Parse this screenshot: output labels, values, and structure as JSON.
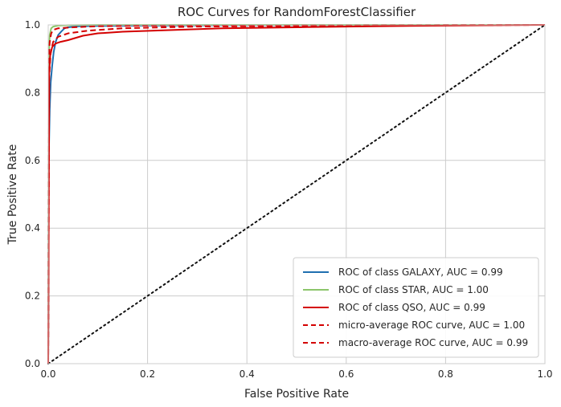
{
  "chart_data": {
    "type": "line",
    "title": "ROC Curves for RandomForestClassifier",
    "xlabel": "False Positive Rate",
    "ylabel": "True Positive Rate",
    "xlim": [
      0,
      1
    ],
    "ylim": [
      0,
      1
    ],
    "x_ticks": [
      "0.0",
      "0.2",
      "0.4",
      "0.6",
      "0.8",
      "1.0"
    ],
    "y_ticks": [
      "0.0",
      "0.2",
      "0.4",
      "0.6",
      "0.8",
      "1.0"
    ],
    "grid": true,
    "legend_position": "lower-right",
    "series": [
      {
        "name": "ROC of class GALAXY, AUC = 0.99",
        "color": "#1f6fb0",
        "dash": "solid",
        "x": [
          0,
          0.001,
          0.003,
          0.005,
          0.008,
          0.011,
          0.015,
          0.02,
          0.026,
          0.033,
          0.04,
          0.06,
          0.1,
          0.2,
          0.4,
          0.7,
          1.0
        ],
        "y": [
          0,
          0.6,
          0.75,
          0.83,
          0.88,
          0.92,
          0.95,
          0.97,
          0.98,
          0.99,
          0.993,
          0.996,
          0.997,
          0.998,
          0.999,
          1.0,
          1.0
        ]
      },
      {
        "name": "ROC of class STAR, AUC = 1.00",
        "color": "#8cc56b",
        "dash": "solid",
        "x": [
          0,
          0.001,
          0.003,
          0.006,
          0.01,
          0.02,
          0.04,
          0.1,
          1.0
        ],
        "y": [
          0,
          0.9,
          0.97,
          0.99,
          0.995,
          0.998,
          0.999,
          1.0,
          1.0
        ]
      },
      {
        "name": "ROC of class QSO, AUC = 0.99",
        "color": "#d40000",
        "dash": "solid",
        "x": [
          0,
          0.002,
          0.004,
          0.008,
          0.015,
          0.025,
          0.04,
          0.07,
          0.1,
          0.15,
          0.25,
          0.35,
          0.5,
          0.65,
          0.8,
          1.0
        ],
        "y": [
          0,
          0.86,
          0.91,
          0.935,
          0.945,
          0.95,
          0.955,
          0.968,
          0.975,
          0.98,
          0.985,
          0.99,
          0.993,
          0.996,
          0.998,
          1.0
        ]
      },
      {
        "name": "micro-average ROC curve, AUC = 1.00",
        "color": "#d40000",
        "dash": "dashed",
        "x": [
          0,
          0.001,
          0.003,
          0.006,
          0.01,
          0.02,
          0.05,
          0.1,
          0.2,
          0.5,
          1.0
        ],
        "y": [
          0,
          0.9,
          0.95,
          0.975,
          0.985,
          0.99,
          0.993,
          0.996,
          0.998,
          0.999,
          1.0
        ]
      },
      {
        "name": "macro-average ROC curve, AUC = 0.99",
        "color": "#d40000",
        "dash": "dashed",
        "x": [
          0,
          0.002,
          0.005,
          0.01,
          0.02,
          0.04,
          0.08,
          0.15,
          0.3,
          0.6,
          1.0
        ],
        "y": [
          0,
          0.85,
          0.92,
          0.95,
          0.965,
          0.975,
          0.983,
          0.99,
          0.995,
          0.998,
          1.0
        ]
      }
    ],
    "diagonal": {
      "color": "#111111",
      "dash": "dotted",
      "x": [
        0,
        1
      ],
      "y": [
        0,
        1
      ]
    }
  }
}
